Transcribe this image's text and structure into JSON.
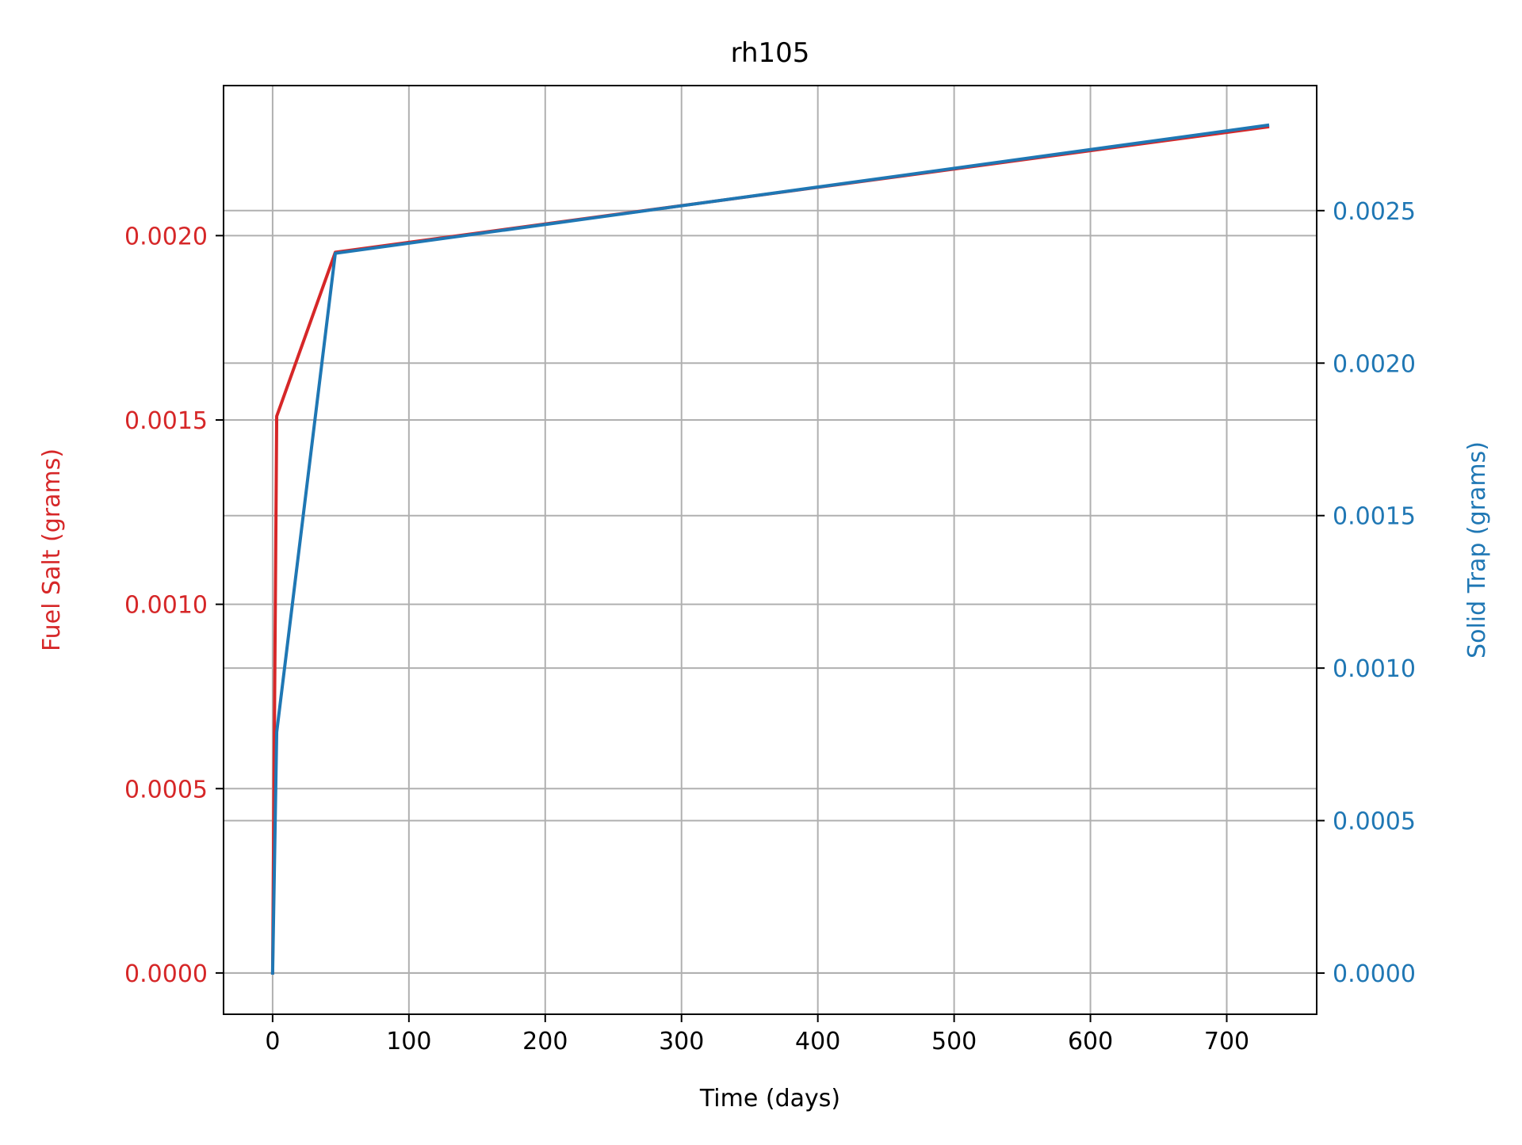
{
  "chart_data": {
    "type": "line",
    "title": "rh105",
    "xlabel": "Time (days)",
    "grid": true,
    "x_axis": {
      "range": [
        -36,
        766
      ],
      "ticks": [
        0,
        100,
        200,
        300,
        400,
        500,
        600,
        700
      ],
      "tick_labels": [
        "0",
        "100",
        "200",
        "300",
        "400",
        "500",
        "600",
        "700"
      ]
    },
    "left_axis": {
      "label": "Fuel Salt (grams)",
      "color": "#d62728",
      "range": [
        -0.000112,
        0.002407
      ],
      "ticks": [
        0,
        0.0005,
        0.001,
        0.0015,
        0.002
      ],
      "tick_labels": [
        "0.0000",
        "0.0005",
        "0.0010",
        "0.0015",
        "0.0020"
      ]
    },
    "right_axis": {
      "label": "Solid Trap (grams)",
      "color": "#1f77b4",
      "range": [
        -0.000135,
        0.00291
      ],
      "ticks": [
        0,
        0.0005,
        0.001,
        0.0015,
        0.002,
        0.0025
      ],
      "tick_labels": [
        "0.0000",
        "0.0005",
        "0.0010",
        "0.0015",
        "0.0020",
        "0.0025"
      ]
    },
    "series": [
      {
        "axis": "left",
        "color": "#d62728",
        "x": [
          0,
          3,
          46,
          730
        ],
        "y": [
          0,
          0.00151,
          0.001955,
          0.002295
        ]
      },
      {
        "axis": "right",
        "color": "#1f77b4",
        "x": [
          0,
          3,
          46,
          730
        ],
        "y": [
          0,
          0.00079,
          0.00236,
          0.00278
        ]
      }
    ]
  }
}
